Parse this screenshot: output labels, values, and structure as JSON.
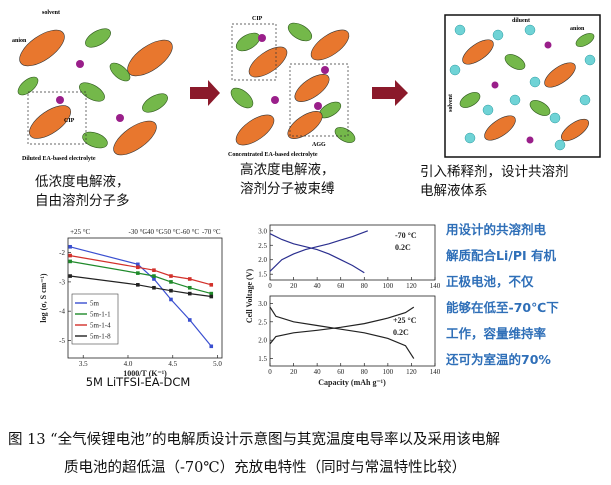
{
  "schematic": {
    "panels": [
      {
        "labels": [
          "solvent",
          "anion",
          "CIP",
          "Diluted EA-based electrolyte"
        ],
        "caption": [
          "低浓度电解液，",
          "自由溶剂分子多"
        ]
      },
      {
        "labels": [
          "CIP",
          "AGG",
          "Concentrated EA-based electrolyte"
        ],
        "caption": [
          "高浓度电解液，",
          "溶剂分子被束缚"
        ]
      },
      {
        "labels": [
          "diluent",
          "anion",
          "solvent"
        ],
        "caption": [
          "引入稀释剂，设计共溶剂",
          "电解液体系"
        ]
      }
    ]
  },
  "chart_data": [
    {
      "type": "line",
      "ylabel": "log (σ, S cm⁻¹)",
      "xlabel": "1000/T (K⁻¹)",
      "caption": "5M LiTFSI-EA-DCM",
      "top_labels": [
        "+25 °C",
        "-30 °C",
        "-40 °C",
        "-50 °C",
        "-60 °C",
        "-70 °C"
      ],
      "x": [
        3.354,
        4.11,
        4.29,
        4.48,
        4.69,
        4.93
      ],
      "series": [
        {
          "name": "5m",
          "color": "#3a4fd0",
          "values": [
            -1.8,
            -2.4,
            -2.9,
            -3.6,
            -4.3,
            -5.2
          ]
        },
        {
          "name": "5m-1-1",
          "color": "#1f8a2a",
          "values": [
            -2.3,
            -2.7,
            -2.8,
            -3.0,
            -3.2,
            -3.4
          ]
        },
        {
          "name": "5m-1-4",
          "color": "#d2302a",
          "values": [
            -2.1,
            -2.5,
            -2.6,
            -2.8,
            -2.9,
            -3.1
          ]
        },
        {
          "name": "5m-1-8",
          "color": "#222222",
          "values": [
            -2.8,
            -3.1,
            -3.2,
            -3.3,
            -3.4,
            -3.5
          ]
        }
      ],
      "xlim": [
        3.33,
        5.05
      ],
      "xticks": [
        3.5,
        {
          "value": 4,
          "label": "4.0"
        },
        4.5,
        {
          "value": 5,
          "label": "5.0"
        }
      ],
      "ylim": [
        -5.6,
        -1.5
      ],
      "yticks": [
        -2,
        -3,
        -4,
        -5
      ],
      "legend": "lower left"
    },
    {
      "type": "line",
      "ylabel": "Cell Voltage (V)",
      "annotations": [
        "-70 °C",
        "0.2C"
      ],
      "series": [
        {
          "color": "#2b2f8f",
          "x": [
            0,
            10,
            20,
            30,
            40,
            50,
            60,
            70,
            83
          ],
          "values": [
            1.6,
            2.0,
            2.2,
            2.35,
            2.45,
            2.55,
            2.68,
            2.8,
            3.0
          ]
        },
        {
          "color": "#2b2f8f",
          "x": [
            0,
            10,
            20,
            30,
            40,
            50,
            60,
            70,
            80
          ],
          "values": [
            2.9,
            2.7,
            2.55,
            2.45,
            2.35,
            2.2,
            2.0,
            1.8,
            1.55
          ]
        }
      ],
      "xlim": [
        0,
        140
      ],
      "xticks": [
        0,
        20,
        40,
        60,
        80,
        100,
        120,
        140
      ],
      "ylim": [
        1.3,
        3.2
      ],
      "yticks": [
        1.5,
        {
          "value": 2,
          "label": "2.0"
        },
        2.5,
        {
          "value": 3,
          "label": "3.0"
        }
      ]
    },
    {
      "type": "line",
      "xlabel": "Capacity (mAh g⁻¹)",
      "annotations": [
        "+25 °C",
        "0.2C"
      ],
      "series": [
        {
          "color": "#222222",
          "x": [
            0,
            5,
            20,
            40,
            60,
            80,
            100,
            115,
            122
          ],
          "values": [
            1.9,
            2.1,
            2.2,
            2.27,
            2.35,
            2.45,
            2.6,
            2.75,
            2.9
          ]
        },
        {
          "color": "#222222",
          "x": [
            0,
            5,
            20,
            40,
            60,
            80,
            100,
            115,
            122
          ],
          "values": [
            2.9,
            2.65,
            2.5,
            2.4,
            2.3,
            2.2,
            2.05,
            1.85,
            1.5
          ]
        }
      ],
      "xlim": [
        0,
        140
      ],
      "xticks": [
        0,
        20,
        40,
        60,
        80,
        100,
        120,
        140
      ],
      "ylim": [
        1.3,
        3.2
      ],
      "yticks": [
        1.5,
        {
          "value": 2,
          "label": "2.0"
        },
        2.5,
        {
          "value": 3,
          "label": "3.0"
        }
      ]
    }
  ],
  "side_text": [
    "用设计的共溶剂电",
    "解质配合Li/PI 有机",
    "正极电池，不仅",
    "能够在低至-70℃下",
    "工作，容量维持率",
    "还可为室温的70%"
  ],
  "figure_caption": [
    "图 13 “全气候锂电池”的电解质设计示意图与其宽温度电导率以及采用该电解",
    "质电池的超低温（-70℃）充放电特性（同时与常温特性比较）"
  ]
}
